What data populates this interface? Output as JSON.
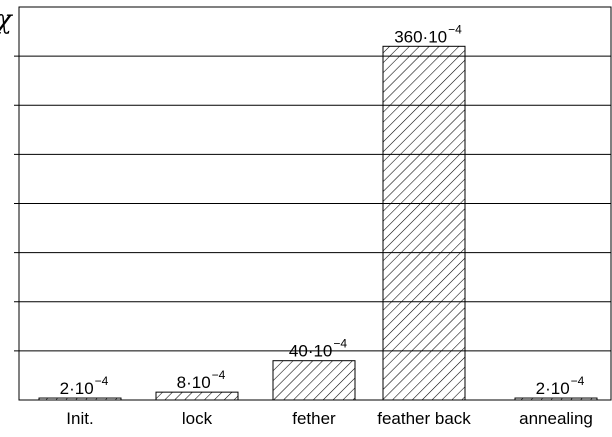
{
  "chart_data": {
    "type": "bar",
    "ylabel": "χ",
    "categories": [
      "Init.",
      "lock",
      "fether",
      "feather back",
      "annealing"
    ],
    "values": [
      2,
      8,
      40,
      360,
      2
    ],
    "value_unit_multiplier": "10^-4",
    "data_labels": [
      {
        "base": "2·10",
        "exponent": "−4"
      },
      {
        "base": "8·10",
        "exponent": "−4"
      },
      {
        "base": "40·10",
        "exponent": "−4"
      },
      {
        "base": "360·10",
        "exponent": "−4"
      },
      {
        "base": "2·10",
        "exponent": "−4"
      }
    ],
    "ylim": [
      0,
      400
    ],
    "ytick_step": 50,
    "grid": true,
    "bar_fill": "diagonal-hatch",
    "colors": {
      "bar_stroke": "#000000",
      "hatch": "#000000",
      "grid": "#000000",
      "background": "#ffffff"
    }
  }
}
